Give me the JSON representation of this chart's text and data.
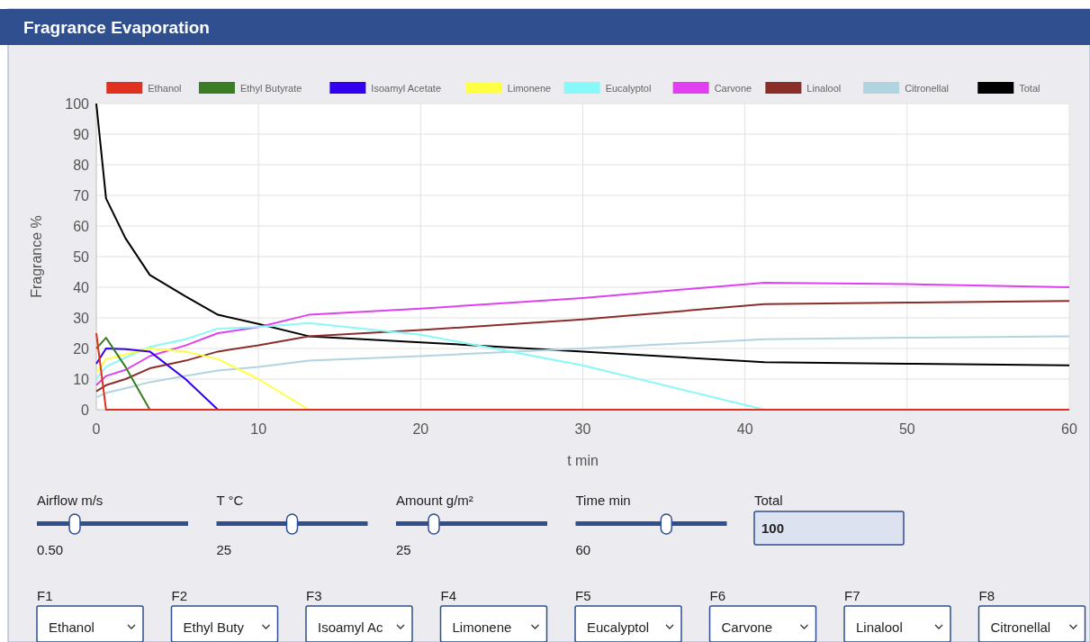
{
  "chart_data": [
    {
      "type": "line",
      "title": "Fragrance Evaporation",
      "xlabel": "t min",
      "ylabel": "Fragrance %",
      "x": [
        0,
        0.6,
        1.8,
        3.3,
        5.5,
        7.5,
        10,
        13.1,
        20,
        30,
        41.2,
        50,
        60
      ],
      "xlim": [
        0,
        60
      ],
      "xticks": [
        0,
        10,
        20,
        30,
        40,
        50,
        60
      ],
      "ylim": [
        0,
        100
      ],
      "yticks": [
        0,
        10,
        20,
        30,
        40,
        50,
        60,
        70,
        80,
        90,
        100
      ],
      "grid": true,
      "legend": "top",
      "marker": "none",
      "line_style": "solid",
      "series": [
        {
          "name": "Ethanol",
          "color": "#e03020",
          "values": [
            25,
            0,
            0,
            0,
            0,
            0,
            0,
            0,
            0,
            0,
            0,
            0,
            0
          ]
        },
        {
          "name": "Ethyl Butyrate",
          "color": "#3a7d25",
          "values": [
            20,
            23.5,
            14,
            0,
            null,
            null,
            null,
            null,
            null,
            null,
            null,
            null,
            null
          ]
        },
        {
          "name": "Isoamyl Acetate",
          "color": "#3300ee",
          "values": [
            15,
            20,
            19.8,
            19,
            10,
            0,
            null,
            null,
            null,
            null,
            null,
            null,
            null
          ]
        },
        {
          "name": "Limonene",
          "color": "#ffff44",
          "values": [
            12,
            16.5,
            18,
            20,
            19,
            16.5,
            10,
            0,
            null,
            null,
            null,
            null,
            null
          ]
        },
        {
          "name": "Eucalyptol",
          "color": "#88f8f8",
          "values": [
            10,
            14,
            17,
            20.5,
            23,
            26.5,
            27,
            28.3,
            24.5,
            14.5,
            0,
            null,
            null
          ]
        },
        {
          "name": "Carvone",
          "color": "#e040f0",
          "values": [
            8,
            11,
            13,
            17.5,
            21,
            25,
            27,
            31,
            33,
            36.5,
            41.5,
            41,
            40
          ]
        },
        {
          "name": "Linalool",
          "color": "#8b2e2a",
          "values": [
            6,
            8,
            10,
            13.5,
            16,
            19,
            21,
            24,
            26,
            29.5,
            34.5,
            35,
            35.5
          ]
        },
        {
          "name": "Citronellal",
          "color": "#b0d4e0",
          "values": [
            4,
            5.5,
            7,
            9,
            11,
            12.8,
            14,
            16,
            17.5,
            20,
            23,
            23.5,
            24
          ]
        },
        {
          "name": "Total",
          "color": "#000000",
          "values": [
            100,
            69,
            56,
            44,
            37,
            31,
            28,
            24,
            22,
            19,
            15.5,
            15,
            14.5
          ]
        }
      ]
    },
    {
      "type": "other",
      "annotations": [
        "Airflow m/s",
        "0.50",
        "T °C",
        "25",
        "Amount g/m²",
        "25",
        "Time min",
        "60",
        "Total",
        "100",
        "F1",
        "Ethanol",
        "F2",
        "Ethyl Buty",
        "F3",
        "Isoamyl Ac",
        "F4",
        "Limonene",
        "F5",
        "Eucalyptol",
        "F6",
        "Carvone",
        "F7",
        "Linalool",
        "F8",
        "Citronellal"
      ]
    }
  ]
}
